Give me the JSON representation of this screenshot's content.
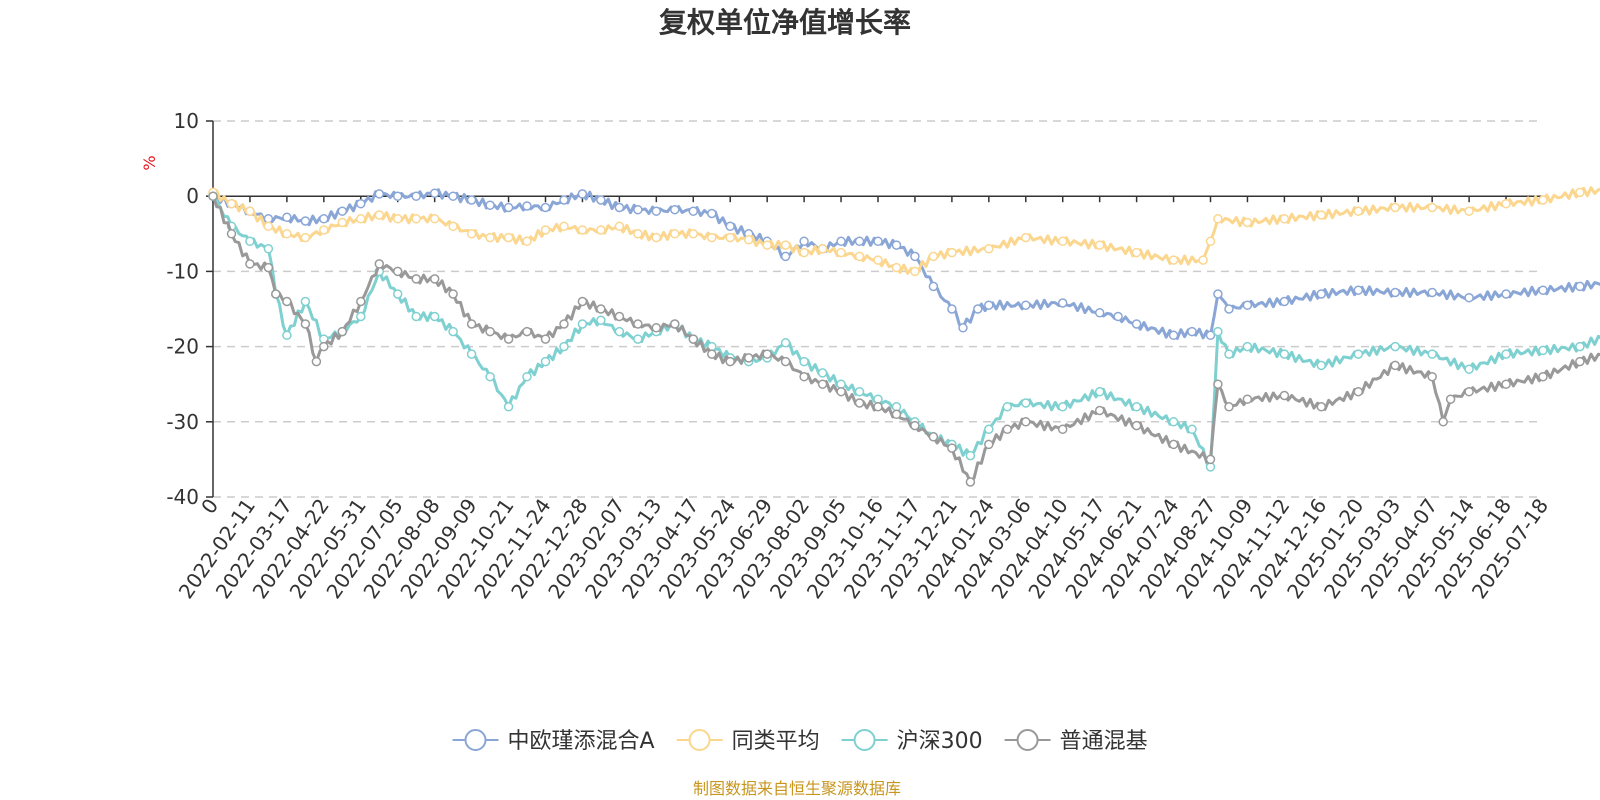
{
  "source_note": "制图数据来自恒生聚源数据库",
  "colors": {
    "axis": "#333333",
    "grid": "#cccccc",
    "unit": "#e8141e",
    "source": "#c8961e"
  },
  "chart_data": {
    "type": "line",
    "title": "复权单位净值增长率",
    "ylabel": "%",
    "ylim": [
      -40,
      10
    ],
    "yticks": [
      10,
      0,
      -10,
      -20,
      -30,
      -40
    ],
    "grid": true,
    "legend_position": "bottom-center",
    "x_tick_labels": [
      "0",
      "2022-02-11",
      "2022-03-17",
      "2022-04-22",
      "2022-05-31",
      "2022-07-05",
      "2022-08-08",
      "2022-09-09",
      "2022-10-21",
      "2022-11-24",
      "2022-12-28",
      "2023-02-07",
      "2023-03-13",
      "2023-04-17",
      "2023-05-24",
      "2023-06-29",
      "2023-08-02",
      "2023-09-05",
      "2023-10-16",
      "2023-11-17",
      "2023-12-21",
      "2024-01-24",
      "2024-03-06",
      "2024-04-10",
      "2024-05-17",
      "2024-06-21",
      "2024-07-24",
      "2024-08-27",
      "2024-10-09",
      "2024-11-12",
      "2024-12-16",
      "2025-01-20",
      "2025-03-03",
      "2025-04-07",
      "2025-05-14",
      "2025-06-18",
      "2025-07-18"
    ],
    "series": [
      {
        "name": "中欧瑾添混合A",
        "color": "#8aa6d6",
        "points": [
          [
            0,
            0
          ],
          [
            0.5,
            -1
          ],
          [
            1,
            -2
          ],
          [
            1.5,
            -3
          ],
          [
            2,
            -2.8
          ],
          [
            2.5,
            -3.3
          ],
          [
            3,
            -3
          ],
          [
            3.5,
            -2
          ],
          [
            4,
            -1
          ],
          [
            4.5,
            0.3
          ],
          [
            5,
            0
          ],
          [
            5.5,
            0
          ],
          [
            6,
            0.4
          ],
          [
            6.5,
            0
          ],
          [
            7,
            -0.5
          ],
          [
            7.5,
            -1.2
          ],
          [
            8,
            -1.5
          ],
          [
            8.5,
            -1.3
          ],
          [
            9,
            -1.5
          ],
          [
            9.5,
            -0.5
          ],
          [
            10,
            0.3
          ],
          [
            10.5,
            -0.5
          ],
          [
            11,
            -1.5
          ],
          [
            11.5,
            -1.8
          ],
          [
            12,
            -2
          ],
          [
            12.5,
            -1.8
          ],
          [
            13,
            -2
          ],
          [
            13.5,
            -2.3
          ],
          [
            14,
            -4
          ],
          [
            14.5,
            -5
          ],
          [
            15,
            -6
          ],
          [
            15.5,
            -8
          ],
          [
            16,
            -6
          ],
          [
            16.5,
            -7
          ],
          [
            17,
            -6
          ],
          [
            17.5,
            -6
          ],
          [
            18,
            -6
          ],
          [
            18.5,
            -6.5
          ],
          [
            19,
            -8
          ],
          [
            19.5,
            -12
          ],
          [
            20,
            -15
          ],
          [
            20.3,
            -17.5
          ],
          [
            20.7,
            -15
          ],
          [
            21,
            -14.5
          ],
          [
            22,
            -14.5
          ],
          [
            23,
            -14.2
          ],
          [
            24,
            -15.5
          ],
          [
            24.5,
            -16
          ],
          [
            25,
            -17
          ],
          [
            26,
            -18.5
          ],
          [
            26.5,
            -18
          ],
          [
            27,
            -18.5
          ],
          [
            27.2,
            -13
          ],
          [
            27.5,
            -15
          ],
          [
            28,
            -14.5
          ],
          [
            29,
            -14
          ],
          [
            30,
            -13
          ],
          [
            31,
            -12.5
          ],
          [
            32,
            -12.8
          ],
          [
            33,
            -12.8
          ],
          [
            34,
            -13.5
          ],
          [
            35,
            -13
          ],
          [
            36,
            -12.5
          ],
          [
            37,
            -12
          ],
          [
            38,
            -11.3
          ]
        ]
      },
      {
        "name": "同类平均",
        "color": "#fbd68e",
        "points": [
          [
            0,
            0.5
          ],
          [
            0.5,
            -1
          ],
          [
            1,
            -2
          ],
          [
            1.5,
            -4
          ],
          [
            2,
            -5
          ],
          [
            2.5,
            -5.5
          ],
          [
            3,
            -4.5
          ],
          [
            3.5,
            -3.5
          ],
          [
            4,
            -3
          ],
          [
            4.5,
            -2.5
          ],
          [
            5,
            -3
          ],
          [
            5.5,
            -3
          ],
          [
            6,
            -3
          ],
          [
            6.5,
            -4
          ],
          [
            7,
            -5
          ],
          [
            7.5,
            -5.5
          ],
          [
            8,
            -5.5
          ],
          [
            8.5,
            -6
          ],
          [
            9,
            -4.5
          ],
          [
            9.5,
            -4
          ],
          [
            10,
            -4.5
          ],
          [
            10.5,
            -4.5
          ],
          [
            11,
            -4
          ],
          [
            11.5,
            -5
          ],
          [
            12,
            -5.5
          ],
          [
            12.5,
            -5
          ],
          [
            13,
            -5
          ],
          [
            13.5,
            -5.5
          ],
          [
            14,
            -5.5
          ],
          [
            14.5,
            -5.8
          ],
          [
            15,
            -6.5
          ],
          [
            15.5,
            -6.5
          ],
          [
            16,
            -7.5
          ],
          [
            16.5,
            -7
          ],
          [
            17,
            -7.5
          ],
          [
            17.5,
            -8
          ],
          [
            18,
            -8.5
          ],
          [
            18.5,
            -9.5
          ],
          [
            19,
            -10
          ],
          [
            19.5,
            -8
          ],
          [
            20,
            -7.5
          ],
          [
            21,
            -7
          ],
          [
            22,
            -5.5
          ],
          [
            23,
            -6
          ],
          [
            24,
            -6.5
          ],
          [
            25,
            -7.5
          ],
          [
            26,
            -8.5
          ],
          [
            26.8,
            -8.5
          ],
          [
            27,
            -6
          ],
          [
            27.2,
            -3
          ],
          [
            28,
            -3.5
          ],
          [
            29,
            -3
          ],
          [
            30,
            -2.5
          ],
          [
            31,
            -2
          ],
          [
            32,
            -1.5
          ],
          [
            33,
            -1.5
          ],
          [
            34,
            -2
          ],
          [
            35,
            -1
          ],
          [
            36,
            -0.5
          ],
          [
            37,
            0.5
          ],
          [
            38,
            1
          ]
        ]
      },
      {
        "name": "沪深300",
        "color": "#7fd0d0",
        "points": [
          [
            0,
            0
          ],
          [
            0.5,
            -4
          ],
          [
            1,
            -6
          ],
          [
            1.5,
            -7
          ],
          [
            1.7,
            -13
          ],
          [
            2,
            -18.5
          ],
          [
            2.5,
            -14
          ],
          [
            3,
            -19
          ],
          [
            3.5,
            -18
          ],
          [
            4,
            -16
          ],
          [
            4.5,
            -10
          ],
          [
            5,
            -13
          ],
          [
            5.5,
            -16
          ],
          [
            6,
            -16
          ],
          [
            6.5,
            -18
          ],
          [
            7,
            -21
          ],
          [
            7.5,
            -24
          ],
          [
            8,
            -28
          ],
          [
            8.5,
            -24
          ],
          [
            9,
            -22
          ],
          [
            9.5,
            -20
          ],
          [
            10,
            -17
          ],
          [
            10.5,
            -16.5
          ],
          [
            11,
            -18
          ],
          [
            11.5,
            -19
          ],
          [
            12,
            -18
          ],
          [
            12.5,
            -17
          ],
          [
            13,
            -19
          ],
          [
            13.5,
            -20
          ],
          [
            14,
            -21.5
          ],
          [
            14.5,
            -22
          ],
          [
            15,
            -21.5
          ],
          [
            15.5,
            -19.5
          ],
          [
            16,
            -22
          ],
          [
            16.5,
            -23.5
          ],
          [
            17,
            -25
          ],
          [
            17.5,
            -26
          ],
          [
            18,
            -27
          ],
          [
            18.5,
            -28
          ],
          [
            19,
            -30
          ],
          [
            19.5,
            -32
          ],
          [
            20,
            -33
          ],
          [
            20.5,
            -34.5
          ],
          [
            21,
            -31
          ],
          [
            21.5,
            -28
          ],
          [
            22,
            -27.5
          ],
          [
            23,
            -28
          ],
          [
            24,
            -26
          ],
          [
            25,
            -28
          ],
          [
            26,
            -30
          ],
          [
            26.5,
            -31
          ],
          [
            27,
            -36
          ],
          [
            27.2,
            -18
          ],
          [
            27.5,
            -21
          ],
          [
            28,
            -20
          ],
          [
            29,
            -21
          ],
          [
            30,
            -22.5
          ],
          [
            31,
            -21
          ],
          [
            32,
            -20
          ],
          [
            33,
            -21
          ],
          [
            34,
            -23
          ],
          [
            35,
            -21
          ],
          [
            36,
            -20.5
          ],
          [
            37,
            -20
          ],
          [
            38,
            -18
          ]
        ]
      },
      {
        "name": "普通混基",
        "color": "#999999",
        "points": [
          [
            0,
            0
          ],
          [
            0.5,
            -5
          ],
          [
            1,
            -9
          ],
          [
            1.5,
            -9.5
          ],
          [
            1.7,
            -13
          ],
          [
            2,
            -14
          ],
          [
            2.5,
            -17
          ],
          [
            2.8,
            -22
          ],
          [
            3,
            -20
          ],
          [
            3.5,
            -18
          ],
          [
            4,
            -14
          ],
          [
            4.5,
            -9
          ],
          [
            5,
            -10
          ],
          [
            5.5,
            -11
          ],
          [
            6,
            -11
          ],
          [
            6.5,
            -13
          ],
          [
            7,
            -17
          ],
          [
            7.5,
            -18
          ],
          [
            8,
            -19
          ],
          [
            8.5,
            -18
          ],
          [
            9,
            -19
          ],
          [
            9.5,
            -17
          ],
          [
            10,
            -14
          ],
          [
            10.5,
            -15
          ],
          [
            11,
            -16
          ],
          [
            11.5,
            -17
          ],
          [
            12,
            -17.5
          ],
          [
            12.5,
            -17
          ],
          [
            13,
            -19
          ],
          [
            13.5,
            -21
          ],
          [
            14,
            -22
          ],
          [
            14.5,
            -21.5
          ],
          [
            15,
            -21
          ],
          [
            15.5,
            -22
          ],
          [
            16,
            -24
          ],
          [
            16.5,
            -25
          ],
          [
            17,
            -26
          ],
          [
            17.5,
            -27.5
          ],
          [
            18,
            -28
          ],
          [
            18.5,
            -29
          ],
          [
            19,
            -30.5
          ],
          [
            19.5,
            -32
          ],
          [
            20,
            -33.5
          ],
          [
            20.5,
            -38
          ],
          [
            21,
            -33
          ],
          [
            21.5,
            -31
          ],
          [
            22,
            -30
          ],
          [
            23,
            -31
          ],
          [
            24,
            -28.5
          ],
          [
            25,
            -30.5
          ],
          [
            26,
            -33
          ],
          [
            27,
            -35
          ],
          [
            27.2,
            -25
          ],
          [
            27.5,
            -28
          ],
          [
            28,
            -27
          ],
          [
            29,
            -26.5
          ],
          [
            30,
            -28
          ],
          [
            31,
            -26
          ],
          [
            32,
            -22.5
          ],
          [
            33,
            -24
          ],
          [
            33.3,
            -30
          ],
          [
            33.5,
            -27
          ],
          [
            34,
            -26
          ],
          [
            35,
            -25
          ],
          [
            36,
            -24
          ],
          [
            37,
            -22
          ],
          [
            38,
            -20.5
          ]
        ]
      }
    ]
  }
}
